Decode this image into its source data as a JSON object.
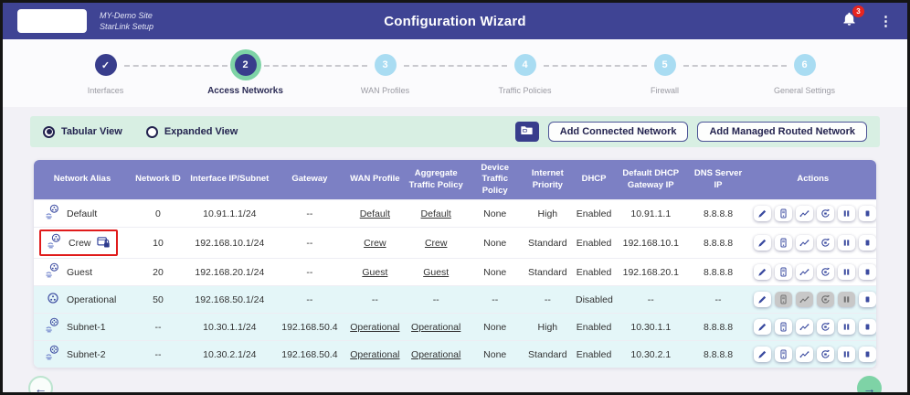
{
  "header": {
    "site_line1": "MY-Demo Site",
    "site_line2": "StarLink Setup",
    "title": "Configuration Wizard",
    "notification_count": "3"
  },
  "stepper": {
    "steps": [
      {
        "number": "1",
        "label": "Interfaces",
        "state": "done"
      },
      {
        "number": "2",
        "label": "Access Networks",
        "state": "current"
      },
      {
        "number": "3",
        "label": "WAN Profiles",
        "state": "upcoming"
      },
      {
        "number": "4",
        "label": "Traffic Policies",
        "state": "upcoming"
      },
      {
        "number": "5",
        "label": "Firewall",
        "state": "upcoming"
      },
      {
        "number": "6",
        "label": "General Settings",
        "state": "upcoming"
      }
    ]
  },
  "toolbar": {
    "view_options": [
      {
        "label": "Tabular View",
        "selected": true
      },
      {
        "label": "Expanded View",
        "selected": false
      }
    ],
    "panel_icon": "folder-icon",
    "buttons": [
      {
        "label": "Add Connected Network"
      },
      {
        "label": "Add Managed Routed Network"
      }
    ]
  },
  "table": {
    "columns": [
      "Network Alias",
      "Network ID",
      "Interface IP/Subnet",
      "Gateway",
      "WAN Profile",
      "Aggregate Traffic Policy",
      "Device Traffic Policy",
      "Internet Priority",
      "DHCP",
      "Default DHCP Gateway IP",
      "DNS Server IP",
      "Actions"
    ],
    "action_icons": [
      "edit-icon",
      "device-icon",
      "statistics-icon",
      "renew-icon",
      "pause-icon",
      "stop-icon"
    ],
    "rows": [
      {
        "icon": "lan-share-icon",
        "alias": "Default",
        "badge": false,
        "highlighted": false,
        "tinted": false,
        "network_id": "0",
        "interface_ip_subnet": "10.91.1.1/24",
        "gateway": "--",
        "wan_profile": "Default",
        "aggregate_traffic_policy": "Default",
        "device_traffic_policy": "None",
        "internet_priority": "High",
        "dhcp": "Enabled",
        "default_dhcp_gateway_ip": "10.91.1.1",
        "dns_server_ip": "8.8.8.8",
        "disabled_actions": []
      },
      {
        "icon": "lan-share-icon",
        "alias": "Crew",
        "badge": true,
        "highlighted": true,
        "tinted": false,
        "network_id": "10",
        "interface_ip_subnet": "192.168.10.1/24",
        "gateway": "--",
        "wan_profile": "Crew",
        "aggregate_traffic_policy": "Crew",
        "device_traffic_policy": "None",
        "internet_priority": "Standard",
        "dhcp": "Enabled",
        "default_dhcp_gateway_ip": "192.168.10.1",
        "dns_server_ip": "8.8.8.8",
        "disabled_actions": []
      },
      {
        "icon": "lan-share-icon",
        "alias": "Guest",
        "badge": false,
        "highlighted": false,
        "tinted": false,
        "network_id": "20",
        "interface_ip_subnet": "192.168.20.1/24",
        "gateway": "--",
        "wan_profile": "Guest",
        "aggregate_traffic_policy": "Guest",
        "device_traffic_policy": "None",
        "internet_priority": "Standard",
        "dhcp": "Enabled",
        "default_dhcp_gateway_ip": "192.168.20.1",
        "dns_server_ip": "8.8.8.8",
        "disabled_actions": []
      },
      {
        "icon": "network-node-icon",
        "alias": "Operational",
        "badge": false,
        "highlighted": false,
        "tinted": true,
        "network_id": "50",
        "interface_ip_subnet": "192.168.50.1/24",
        "gateway": "--",
        "wan_profile": "--",
        "aggregate_traffic_policy": "--",
        "device_traffic_policy": "--",
        "internet_priority": "--",
        "dhcp": "Disabled",
        "default_dhcp_gateway_ip": "--",
        "dns_server_ip": "--",
        "disabled_actions": [
          1,
          2,
          3,
          4
        ]
      },
      {
        "icon": "subnet-share-icon",
        "alias": "Subnet-1",
        "badge": false,
        "highlighted": false,
        "tinted": true,
        "network_id": "--",
        "interface_ip_subnet": "10.30.1.1/24",
        "gateway": "192.168.50.4",
        "wan_profile": "Operational",
        "aggregate_traffic_policy": "Operational",
        "device_traffic_policy": "None",
        "internet_priority": "High",
        "dhcp": "Enabled",
        "default_dhcp_gateway_ip": "10.30.1.1",
        "dns_server_ip": "8.8.8.8",
        "disabled_actions": []
      },
      {
        "icon": "subnet-share-icon",
        "alias": "Subnet-2",
        "badge": false,
        "highlighted": false,
        "tinted": true,
        "network_id": "--",
        "interface_ip_subnet": "10.30.2.1/24",
        "gateway": "192.168.50.4",
        "wan_profile": "Operational",
        "aggregate_traffic_policy": "Operational",
        "device_traffic_policy": "None",
        "internet_priority": "Standard",
        "dhcp": "Enabled",
        "default_dhcp_gateway_ip": "10.30.2.1",
        "dns_server_ip": "8.8.8.8",
        "disabled_actions": []
      }
    ]
  },
  "footer": {
    "back_icon": "arrow-left-icon",
    "next_icon": "arrow-right-icon"
  },
  "icons": {
    "notifications": "bell-icon",
    "overflow_menu": "kebab-menu-icon",
    "crew_badge": "captive-portal-lock-icon"
  },
  "colors": {
    "header_bg": "#3f4494",
    "accent_green": "#7ed3a6",
    "step_done_bg": "#383d8c",
    "step_upcoming_bg": "#a9dcf2",
    "toolbar_bg": "#d8efe3",
    "table_header_bg": "#7c80c4",
    "row_tint": "#e4f6f8",
    "action_icon": "#3b4ba0",
    "badge_red": "#e8251f",
    "highlight_red": "#e01b1b"
  }
}
